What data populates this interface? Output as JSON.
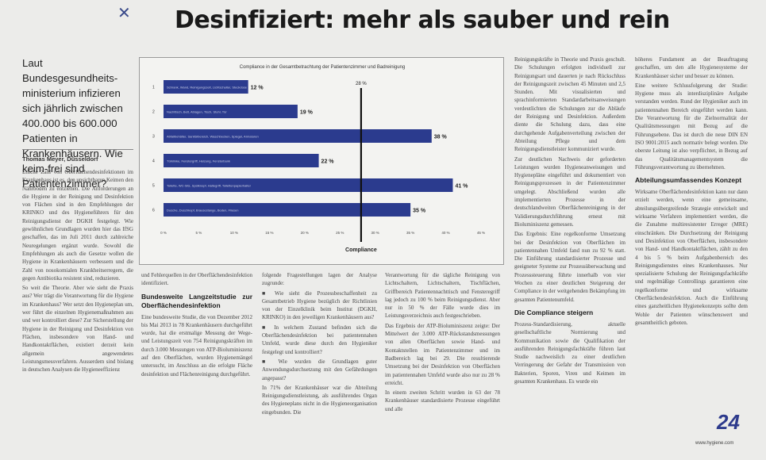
{
  "article": {
    "headline": "Desinfiziert: mehr als sauber und rein",
    "pen_mark": "✕",
    "lead": "Laut Bundesgesundheits-ministerium infizieren sich jährlich zwischen 400.000 bis 600.000 Patienten in Krankenhäusern. Wie keim-frei sind Patientenzimmer?",
    "author": "Thomas Meyer, Düsseldorf",
    "col1_p1": "Etliche Zahl von Oberflächendesinfektionen im Krankenhaus ist es, den unsichtbaren Keimen den Nährboden zu entziehen. Die Anforderungen an die Hygiene in der Reinigung und Desinfektion von Flächen sind in den Empfehlungen der KRINKO und des Hygieneführers für den Reinigungsdienst der DGKH festgelegt. Wie gewöhnlichen Grundlagen wurden hier das IfSG geschaffen, das im Juli 2011 durch zahlreiche Neuregelungen ergänzt wurde. Sowohl die Empfehlungen als auch die Gesetze wollen die Hygiene in Krankenhäusern verbessern und die Zahl von nosokomialen Krankheitserregern, die gegen Antibiotika resistent sind, reduzieren.",
    "col1_p2": "So weit die Theorie. Aber wie sieht die Praxis aus? Wer trägt die Verantwortung für die Hygiene im Krankenhaus? Wer setzt den Hygieneplan um, wer führt die einzelnen Hygienemaßnahmen aus und wer kontrolliert diese? Zur Sicherstellung der Hygiene in der Reinigung und Desinfektion von Flächen, insbesondere von Hand- und Handkontaktflächen, existiert derzeit kein allgemein angewendetes Leistungsmessverfahren. Ausserdem sind bislang in deutschen Analysen die Hygieneeffizienz",
    "col2_p1": "und Fehlerquellen in der Oberflächendesinfektion identifiziert.",
    "col2_sub": "Bundesweite Langzeitstudie zur Oberflächendesinfektion",
    "col2_p2": "Eine bundesweite Studie, die von Dezember 2012 bis Mai 2013 in 78 Krankenhäusern durchgeführt wurde, hat die erstmalige Messung der Wege- und Leistungszeit von 754 Reinigungskräften im durch 3.000 Messungen von ATP-Bioluminiszenz auf den Oberflächen, wurden Hygienemängel untersucht, im Anschluss an die erfolgte Fläche desinfektion und Flächenreinigung durchgeführt.",
    "col3_p1": "folgende Fragestellungen lagen der Analyse zugrunde:",
    "col3_p2": "■ Wie sieht die Prozessbeschaffenheit zu Gesamtbetrieb Hygiene bezüglich der Richtlinien von der Einzelklinik beim Institut (DGKH, KRINKO) in den jeweiligen Krankenhäusern aus?",
    "col3_p3": "■ In welchem Zustand befinden sich die Oberflächendesinfektion bei patientennahen Umfeld, wurde diese durch den Hygieniker festgelegt und kontrolliert?",
    "col3_p4": "■ Wie wurden die Grundlagen guter Anwendungsdurchsetzung mit den Gefährdungen angepasst?",
    "col3_p5": "In 71% der Krankenhäuser war die Abteilung Reinigungsdienstleistung, als ausführendes Organ des Hygieneplans nicht in die Hygieneorganisation eingebunden. Die",
    "col4_p1": "Verantwortung für die tägliche Reinigung von Lichtschaltern, Lichtschaltern, Tischflächen, Griffbereich Patientennachttisch und Fensteregriff lag jedoch zu 100 % beim Reinigungsdienst. Aber nur in 50 % der Fälle wurde dies im Leistungsverzeichnis auch festgeschrieben.",
    "col4_p2": "Das Ergebnis der ATP-Bioluminiszenz zeigte: Der Mittelwert der 3.000 ATP-Rückstandsmessungen von allen Oberflächen sowie Hand- und Kontaktstellen im Patientenzimmer und im Badbereich lag bei 29. Die resultierende Umsetzung bei der Desinfektion von Oberflächen im patientennahen Umfeld wurde also nur zu 28 % erreicht.",
    "col4_p3": "In einem zweiten Schritt wurden in 63 der 78 Krankenhäuser standardisierte Prozesse eingeführt und alle",
    "col5_p1": "Reinigungskräfte in Theorie und Praxis geschult. Die Schulungen erfolgten individuell zur Reinigungsart und dauerten je nach Rückschluss der Reinigungszeit zwischen 45 Minuten und 2,5 Stunden. Mit visualisierten und sprachinformierten Standardarbeitsanweisungen verdeutlichten die Schulungen zur die Abläufe der Reinigung und Desinfektion. Außerdem diente die Schulung dazu, dass eine durchgehende Aufgabenverteilung zwischen der Abteilung Pflege und dem Reinigungsdienstleister kommuniziert wurde.",
    "col5_p2": "Zur deutlichen Nachweis der geforderten Leistungen wurden Hygieneanweisungen und Hygienepläne eingeführt und dokumentiert von Reinigungsprozessen in der Patientenzimmer umgelegt. Abschließend wurden alle implementierten Prozesse in der deutschlandweiten Oberflächenreinigung in der Validierungsdurchführung erneut mit Bioluminiszenz gemessen.",
    "col5_p3": "Das Ergebnis: Eine regelkonforme Umsetzung bei der Desinfektion von Oberflächen im patientennahen Umfeld fand nun zu 92 % statt. Die Einführung standardisierter Prozesse und geeigneter Systeme zur Prozessüberwachung und Prozesssteuerung führte innerhalb von vier Wochen zu einer deutlichen Steigerung der Compliance in der weitgehenden Bekämpfung im gesamten Patientenumfeld.",
    "col5_sub": "Die Compliance steigern",
    "col5_p4": "Prozess-Standardisierung, aktuelle gesellschaftliche Normierung und Kommunikation sowie die Qualifikation der ausführenden Reinigungsfachkräfte führen laut Studie nachweislich zu einer deutlichen Verringerung der Gefahr der Transmission von Bakterien, Sporen, Viren und Keimen im gesamten Krankenhaus. Es wurde ein",
    "col6_p1": "höheres Fundament an der Beauftragung geschaffen, um den alle Hygienesysteme der Krankenhäuser sicher und besser zu können.",
    "col6_p2": "Eine weitere Schlussfolgerung der Studie: Hygiene muss als interdisziplinäre Aufgabe verstanden werden. Rund der Hygieniker auch im patientennahen Bereich eingeführt werden kann. Die Verantwortung für die Zielnormalität der Qualitätsmessungen mit Bezug auf die Führungsebene. Das ist durch die neue DIN EN ISO 9001:2015 auch normativ belegt worden. Die oberste Leitung ist also verpflichtet, in Bezug auf das Qualitätsmanagementsystem die Führungsverantwortung zu übernehmen.",
    "col6_sub": "Abteilungsumfassendes Konzept",
    "col6_p3": "Wirksame Oberflächendesinfektion kann nur dann erzielt werden, wenn eine gemeinsame, abteilungsübergreifende Strategie entwickelt und wirksame Verfahren implementiert werden, die die Zunahme multiresistenter Erreger (MRE) einschränken. Die Durchsetzung der Reinigung und Desinfektion von Oberflächen, insbesondere von Hand- und Handkontaktflächen, zählt zu den 4 bis 5 % beim Aufgabenbereich des Reinigungsdienstes eines Krankenhauses. Nur spezialisierte Schulung der Reinigungsfachkräfte und regelmäßige Controllings garantieren eine regelkonforme und wirksame Oberflächendesinfektion. Auch die Einführung eines ganzheitlichen Hygienekonzepts sollte dem Wohle der Patienten wünschenswert und gesamtheitlich geboten.",
    "page_number": "24",
    "website": "www.hygiene.com"
  },
  "chart_data": {
    "type": "bar",
    "orientation": "horizontal",
    "title": "Compliance in der Gesamtbetrachtung der Patientenzimmer und Badreinigung",
    "xlabel": "Compliance",
    "ylabel": "",
    "categories": [
      "1",
      "2",
      "3",
      "4",
      "5",
      "6"
    ],
    "category_texts": [
      "Schrank, Wand, Reinigungszeit, Lichtschalter, Steckdose",
      "Nachttisch, Bett, Ablagen, Tisch, Stuhl, Tür",
      "Abfallbehälter, Sanitärbereich, Waschbecken, Spiegel, Armaturen",
      "Türklinke, Fenstergriff, Heizung, Fensterbank",
      "Toilette, WC-Sitz, Spülknopf, Haltegriff, Toilettenpapierhalter",
      "Dusche, Duschkopf, Brausestange, Boden, Fliesen"
    ],
    "values": [
      12,
      19,
      38,
      22,
      41,
      35
    ],
    "value_labels": [
      "12 %",
      "19 %",
      "38 %",
      "22 %",
      "41 %",
      "35 %"
    ],
    "xlim": [
      0,
      45
    ],
    "xticks": [
      "0 %",
      "5 %",
      "10 %",
      "15 %",
      "20 %",
      "25 %",
      "30 %",
      "35 %",
      "40 %",
      "45 %"
    ],
    "reference_line": {
      "value": 28,
      "label": "28 %"
    },
    "bar_color": "#2b3b8e",
    "reference_color": "#111111",
    "grid": false
  }
}
